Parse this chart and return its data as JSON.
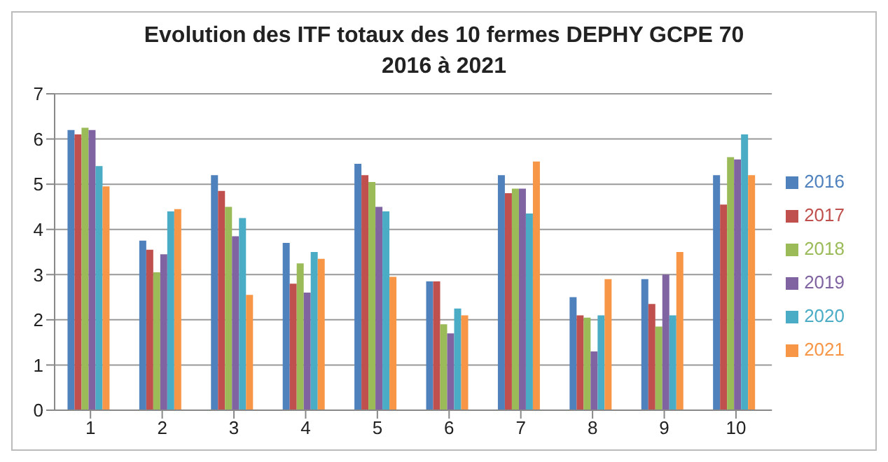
{
  "chart_data": {
    "type": "bar",
    "title": "Evolution des ITF totaux des 10 fermes DEPHY GCPE 70 2016 à 2021",
    "categories": [
      "1",
      "2",
      "3",
      "4",
      "5",
      "6",
      "7",
      "8",
      "9",
      "10"
    ],
    "series": [
      {
        "name": "2016",
        "color": "#4f81bd",
        "values": [
          6.2,
          3.75,
          5.2,
          3.7,
          5.45,
          2.85,
          5.2,
          2.5,
          2.9,
          5.2
        ]
      },
      {
        "name": "2017",
        "color": "#c0504d",
        "values": [
          6.1,
          3.55,
          4.85,
          2.8,
          5.2,
          2.85,
          4.8,
          2.1,
          2.35,
          4.55
        ]
      },
      {
        "name": "2018",
        "color": "#9bbb59",
        "values": [
          6.25,
          3.05,
          4.5,
          3.25,
          5.05,
          1.9,
          4.9,
          2.05,
          1.85,
          5.6
        ]
      },
      {
        "name": "2019",
        "color": "#8064a2",
        "values": [
          6.2,
          3.45,
          3.85,
          2.6,
          4.5,
          1.7,
          4.9,
          1.3,
          3.0,
          5.55
        ]
      },
      {
        "name": "2020",
        "color": "#4bacc6",
        "values": [
          5.4,
          4.4,
          4.25,
          3.5,
          4.4,
          2.25,
          4.35,
          2.1,
          2.1,
          6.1
        ]
      },
      {
        "name": "2021",
        "color": "#f79646",
        "values": [
          4.95,
          4.45,
          2.55,
          3.35,
          2.95,
          2.1,
          5.5,
          2.9,
          3.5,
          5.2
        ]
      }
    ],
    "ylim": [
      0,
      7
    ],
    "yticks": [
      0,
      1,
      2,
      3,
      4,
      5,
      6,
      7
    ],
    "grid": "y",
    "legend": "right"
  }
}
